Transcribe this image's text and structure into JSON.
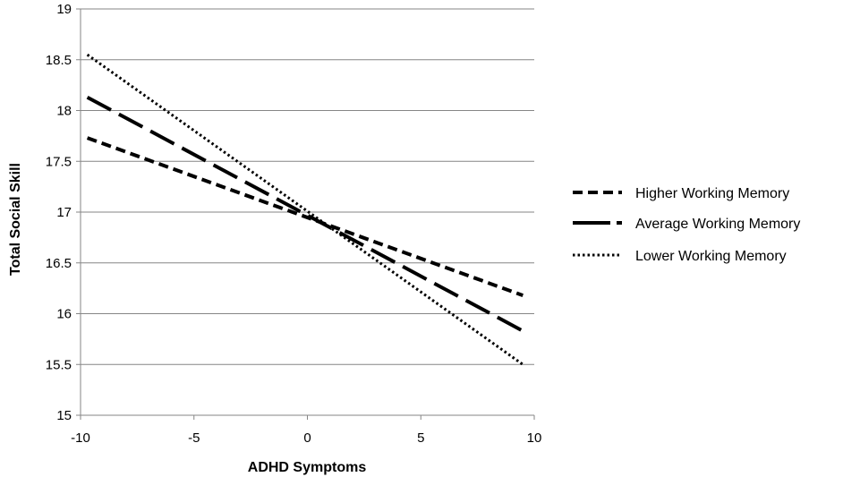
{
  "chart_data": {
    "type": "line",
    "xlabel": "ADHD Symptoms",
    "ylabel": "Total Social Skill",
    "xlim": [
      -10,
      10
    ],
    "ylim": [
      15,
      19
    ],
    "xticks": [
      -10,
      -5,
      0,
      5,
      10
    ],
    "yticks": [
      15,
      15.5,
      16,
      16.5,
      17,
      17.5,
      18,
      18.5,
      19
    ],
    "grid": "horizontal",
    "legend_position": "right",
    "series": [
      {
        "name": "Higher Working Memory",
        "x": [
          -9.7,
          9.5
        ],
        "y": [
          17.73,
          16.18
        ],
        "style": "short-dash"
      },
      {
        "name": "Average Working Memory",
        "x": [
          -9.7,
          9.5
        ],
        "y": [
          18.13,
          15.83
        ],
        "style": "long-dash"
      },
      {
        "name": "Lower Working Memory",
        "x": [
          -9.7,
          9.5
        ],
        "y": [
          18.55,
          15.5
        ],
        "style": "dotted"
      }
    ],
    "colors": {
      "line": "#000000",
      "grid": "#868686",
      "axis": "#868686"
    }
  }
}
